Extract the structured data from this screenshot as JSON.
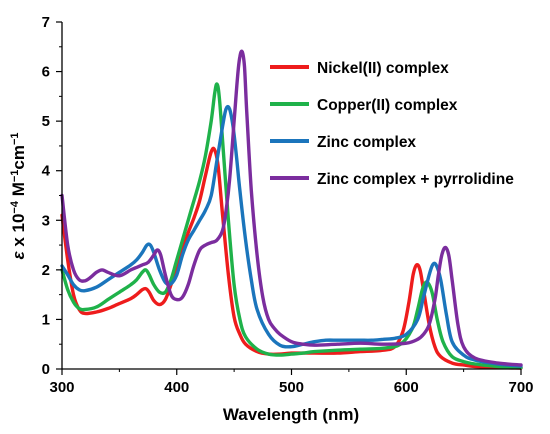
{
  "chart_data": {
    "type": "line",
    "title": "",
    "xlabel": "Wavelength (nm)",
    "ylabel_symbol": "ε",
    "ylabel_rest": " x 10",
    "ylabel_exp1": "−4",
    "ylabel_unit": " M",
    "ylabel_exp2": "−1",
    "ylabel_unit2": "cm",
    "ylabel_exp3": "−1",
    "xlim": [
      300,
      700
    ],
    "ylim": [
      0,
      7
    ],
    "xticks": [
      300,
      400,
      500,
      600,
      700
    ],
    "yticks": [
      0,
      1,
      2,
      3,
      4,
      5,
      6,
      7
    ],
    "grid": false,
    "legend_position": "top-right",
    "series": [
      {
        "name": "Nickel(II) complex",
        "color": "#ee1c1c",
        "x": [
          300,
          305,
          310,
          315,
          320,
          330,
          340,
          350,
          360,
          365,
          370,
          373,
          376,
          380,
          385,
          390,
          395,
          400,
          405,
          410,
          415,
          420,
          425,
          430,
          433,
          436,
          440,
          445,
          450,
          455,
          460,
          470,
          480,
          490,
          500,
          520,
          540,
          560,
          580,
          590,
          597,
          602,
          606,
          609,
          612,
          615,
          620,
          625,
          630,
          640,
          650,
          660,
          680,
          700
        ],
        "y": [
          3.1,
          2.2,
          1.5,
          1.2,
          1.12,
          1.15,
          1.22,
          1.32,
          1.42,
          1.5,
          1.6,
          1.62,
          1.55,
          1.38,
          1.3,
          1.4,
          1.7,
          2.05,
          2.4,
          2.75,
          3.05,
          3.4,
          3.9,
          4.38,
          4.42,
          4.1,
          3.1,
          1.9,
          1.05,
          0.7,
          0.5,
          0.35,
          0.3,
          0.3,
          0.32,
          0.32,
          0.32,
          0.35,
          0.38,
          0.45,
          0.75,
          1.3,
          1.9,
          2.1,
          2.0,
          1.6,
          0.9,
          0.45,
          0.25,
          0.12,
          0.08,
          0.05,
          0.03,
          0.02
        ]
      },
      {
        "name": "Copper(II) complex",
        "color": "#1fb24a",
        "x": [
          300,
          305,
          310,
          315,
          320,
          330,
          340,
          350,
          360,
          365,
          370,
          373,
          376,
          380,
          385,
          390,
          395,
          400,
          405,
          410,
          415,
          420,
          425,
          430,
          433,
          435,
          437,
          440,
          445,
          450,
          455,
          460,
          470,
          480,
          490,
          500,
          510,
          520,
          540,
          560,
          580,
          595,
          605,
          610,
          614,
          617,
          620,
          623,
          627,
          632,
          640,
          650,
          660,
          680,
          700
        ],
        "y": [
          2.0,
          1.6,
          1.35,
          1.22,
          1.2,
          1.25,
          1.4,
          1.55,
          1.7,
          1.8,
          1.95,
          2.0,
          1.9,
          1.7,
          1.55,
          1.55,
          1.8,
          2.2,
          2.6,
          3.0,
          3.4,
          3.8,
          4.3,
          5.0,
          5.55,
          5.75,
          5.5,
          4.6,
          3.0,
          1.7,
          1.0,
          0.65,
          0.4,
          0.3,
          0.28,
          0.3,
          0.32,
          0.35,
          0.38,
          0.4,
          0.42,
          0.5,
          0.8,
          1.2,
          1.6,
          1.75,
          1.7,
          1.5,
          1.0,
          0.55,
          0.25,
          0.15,
          0.1,
          0.05,
          0.03
        ]
      },
      {
        "name": "Zinc complex",
        "color": "#1b75bc",
        "x": [
          300,
          305,
          310,
          315,
          320,
          330,
          340,
          350,
          360,
          365,
          370,
          374,
          377,
          380,
          385,
          390,
          395,
          400,
          405,
          410,
          415,
          420,
          425,
          430,
          435,
          440,
          443,
          446,
          449,
          452,
          455,
          460,
          465,
          470,
          480,
          490,
          500,
          510,
          520,
          530,
          540,
          550,
          560,
          570,
          580,
          590,
          600,
          610,
          615,
          620,
          623,
          626,
          630,
          635,
          640,
          650,
          660,
          680,
          700
        ],
        "y": [
          2.08,
          1.9,
          1.7,
          1.6,
          1.58,
          1.65,
          1.8,
          1.95,
          2.1,
          2.2,
          2.35,
          2.5,
          2.5,
          2.35,
          2.0,
          1.75,
          1.72,
          1.9,
          2.3,
          2.6,
          2.8,
          3.0,
          3.2,
          3.5,
          4.2,
          4.9,
          5.25,
          5.25,
          4.9,
          4.3,
          3.6,
          2.6,
          1.8,
          1.2,
          0.7,
          0.48,
          0.45,
          0.5,
          0.55,
          0.58,
          0.58,
          0.58,
          0.58,
          0.58,
          0.6,
          0.62,
          0.7,
          1.0,
          1.45,
          1.9,
          2.1,
          2.1,
          1.8,
          1.1,
          0.55,
          0.28,
          0.18,
          0.1,
          0.06
        ]
      },
      {
        "name": "Zinc complex + pyrrolidine",
        "color": "#7b2d9e",
        "x": [
          300,
          305,
          310,
          315,
          320,
          325,
          330,
          335,
          340,
          350,
          360,
          365,
          370,
          375,
          380,
          383,
          386,
          390,
          395,
          400,
          405,
          410,
          415,
          420,
          425,
          430,
          435,
          440,
          443,
          446,
          450,
          453,
          455,
          457,
          459,
          461,
          465,
          470,
          475,
          480,
          485,
          490,
          500,
          510,
          520,
          540,
          560,
          580,
          600,
          610,
          615,
          620,
          625,
          628,
          631,
          634,
          637,
          640,
          645,
          650,
          660,
          680,
          700
        ],
        "y": [
          3.5,
          2.5,
          2.0,
          1.8,
          1.78,
          1.85,
          1.95,
          2.0,
          1.95,
          1.88,
          2.0,
          2.05,
          2.1,
          2.15,
          2.3,
          2.4,
          2.3,
          1.9,
          1.5,
          1.4,
          1.45,
          1.7,
          2.1,
          2.4,
          2.5,
          2.55,
          2.6,
          2.8,
          3.2,
          3.8,
          5.0,
          5.9,
          6.3,
          6.4,
          6.1,
          5.2,
          3.6,
          2.3,
          1.45,
          1.0,
          0.82,
          0.7,
          0.55,
          0.5,
          0.48,
          0.5,
          0.52,
          0.5,
          0.52,
          0.6,
          0.7,
          0.9,
          1.4,
          1.9,
          2.3,
          2.45,
          2.3,
          1.8,
          0.9,
          0.45,
          0.22,
          0.12,
          0.08
        ]
      }
    ]
  }
}
